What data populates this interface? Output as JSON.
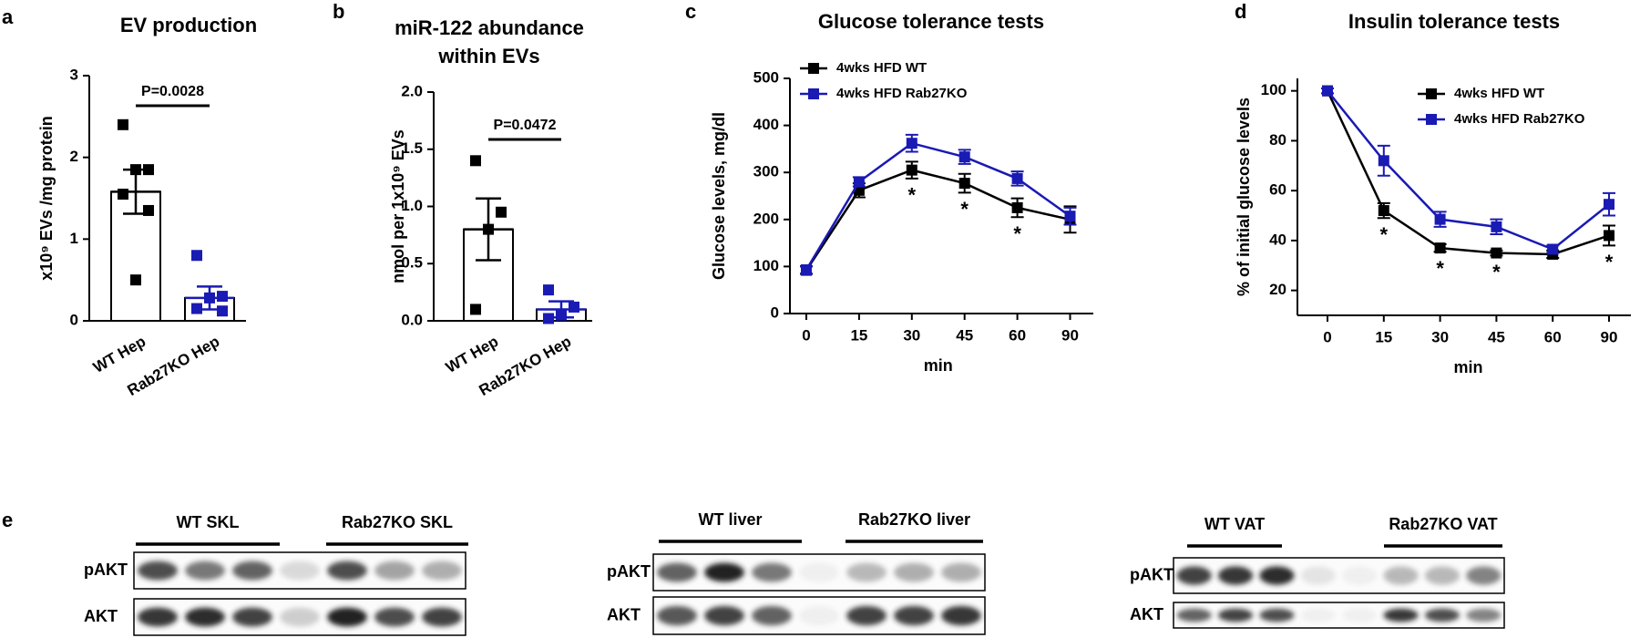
{
  "chart_data": [
    {
      "type": "bar",
      "label": "a",
      "title": "EV production",
      "ylabel": "x10⁹ EVs /mg protein",
      "categories": [
        "WT Hep",
        "Rab27KO Hep"
      ],
      "values": [
        1.58,
        0.28
      ],
      "errors": [
        0.27,
        0.14
      ],
      "points": [
        [
          2.4,
          1.85,
          1.85,
          1.55,
          1.35,
          0.5
        ],
        [
          0.8,
          0.3,
          0.28,
          0.15,
          0.12
        ]
      ],
      "colors": [
        "#000000",
        "#1a1ab4"
      ],
      "annotation": "P=0.0028",
      "ylim": [
        0,
        3
      ],
      "yticks": [
        0,
        1,
        2,
        3
      ]
    },
    {
      "type": "bar",
      "label": "b",
      "title": [
        "miR-122 abundance",
        "within EVs"
      ],
      "ylabel": "nmol per 1x10⁹ EVs",
      "categories": [
        "WT Hep",
        "Rab27KO Hep"
      ],
      "values": [
        0.8,
        0.1
      ],
      "errors": [
        0.27,
        0.07
      ],
      "points": [
        [
          1.4,
          0.95,
          0.8,
          0.1
        ],
        [
          0.27,
          0.12,
          0.05,
          0.02
        ]
      ],
      "colors": [
        "#000000",
        "#1a1ab4"
      ],
      "annotation": "P=0.0472",
      "ylim": [
        0,
        2
      ],
      "yticks": [
        {
          "value": 0,
          "label": "0.0"
        },
        {
          "value": 0.5,
          "label": "0.5"
        },
        {
          "value": 1,
          "label": "1.0"
        },
        {
          "value": 1.5,
          "label": "1.5"
        },
        {
          "value": 2,
          "label": "2.0"
        }
      ]
    },
    {
      "type": "line",
      "label": "c",
      "title": "Glucose tolerance tests",
      "ylabel": "Glucose levels, mg/dl",
      "xlabel": "min",
      "categories": [
        "0",
        "15",
        "30",
        "45",
        "60",
        "90"
      ],
      "series": [
        {
          "name": "4wks HFD WT",
          "color": "#000000",
          "values": [
            92,
            262,
            305,
            277,
            225,
            200
          ],
          "errors": [
            8,
            15,
            18,
            20,
            20,
            28
          ]
        },
        {
          "name": "4wks HFD Rab27KO",
          "color": "#1a1ab4",
          "values": [
            93,
            280,
            362,
            333,
            287,
            207
          ],
          "errors": [
            8,
            10,
            18,
            15,
            15,
            18
          ]
        }
      ],
      "markers": [
        null,
        null,
        "*",
        "*",
        "*",
        null
      ],
      "ylim": [
        0,
        500
      ],
      "yticks": [
        0,
        100,
        200,
        300,
        400,
        500
      ]
    },
    {
      "type": "line",
      "label": "d",
      "title": "Insulin tolerance tests",
      "ylabel": "% of initial glucose levels",
      "xlabel": "min",
      "categories": [
        "0",
        "15",
        "30",
        "45",
        "60",
        "90"
      ],
      "series": [
        {
          "name": "4wks HFD WT",
          "color": "#000000",
          "values": [
            100,
            52,
            37,
            35,
            34.5,
            42
          ],
          "errors": [
            1,
            3,
            1.5,
            1,
            1.5,
            4
          ]
        },
        {
          "name": "4wks HFD Rab27KO",
          "color": "#1a1ab4",
          "values": [
            100,
            72,
            48.5,
            45.5,
            36.5,
            54.5
          ],
          "errors": [
            1,
            6,
            3,
            3,
            1.5,
            4.5
          ]
        }
      ],
      "markers": [
        null,
        "*",
        "*",
        "*",
        null,
        "*"
      ],
      "ylim": [
        10,
        105
      ],
      "yticks": [
        20,
        40,
        60,
        80,
        100
      ]
    }
  ],
  "blots": {
    "label": "e",
    "panels": [
      {
        "groups": [
          "WT SKL",
          "Rab27KO SKL"
        ],
        "rows": [
          "pAKT",
          "AKT"
        ]
      },
      {
        "groups": [
          "WT liver",
          "Rab27KO liver"
        ],
        "rows": [
          "pAKT",
          "AKT"
        ]
      },
      {
        "groups": [
          "WT VAT",
          "Rab27KO VAT"
        ],
        "rows": [
          "pAKT",
          "AKT"
        ]
      }
    ]
  }
}
